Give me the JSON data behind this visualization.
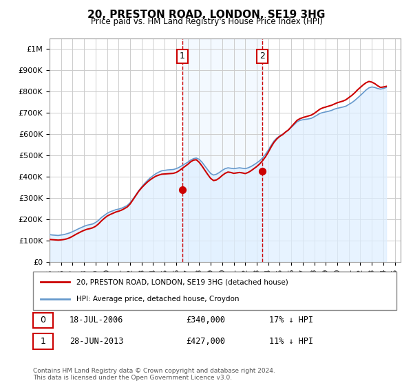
{
  "title": "20, PRESTON ROAD, LONDON, SE19 3HG",
  "subtitle": "Price paid vs. HM Land Registry's House Price Index (HPI)",
  "ylabel_ticks": [
    "£0",
    "£100K",
    "£200K",
    "£300K",
    "£400K",
    "£500K",
    "£600K",
    "£700K",
    "£800K",
    "£900K",
    "£1M"
  ],
  "ytick_values": [
    0,
    100000,
    200000,
    300000,
    400000,
    500000,
    600000,
    700000,
    800000,
    900000,
    1000000
  ],
  "ylim": [
    0,
    1050000
  ],
  "xlim_start": 1995.0,
  "xlim_end": 2025.5,
  "background_color": "#ffffff",
  "plot_bg_color": "#ffffff",
  "grid_color": "#cccccc",
  "hpi_color": "#6699cc",
  "sale_color": "#cc0000",
  "hpi_fill_color": "#ddeeff",
  "annotation_box_color": "#cc0000",
  "annotation_vline_color": "#cc0000",
  "annotation_fill_color": "#ddeeff",
  "transaction1": {
    "date_label": "18-JUL-2006",
    "year": 2006.54,
    "price": 340000,
    "label": "1",
    "pct": "17% ↓ HPI"
  },
  "transaction2": {
    "date_label": "28-JUN-2013",
    "year": 2013.49,
    "price": 427000,
    "label": "2",
    "pct": "11% ↓ HPI"
  },
  "legend_line1": "20, PRESTON ROAD, LONDON, SE19 3HG (detached house)",
  "legend_line2": "HPI: Average price, detached house, Croydon",
  "footnote": "Contains HM Land Registry data © Crown copyright and database right 2024.\nThis data is licensed under the Open Government Licence v3.0.",
  "hpi_data": {
    "years": [
      1995.0,
      1995.25,
      1995.5,
      1995.75,
      1996.0,
      1996.25,
      1996.5,
      1996.75,
      1997.0,
      1997.25,
      1997.5,
      1997.75,
      1998.0,
      1998.25,
      1998.5,
      1998.75,
      1999.0,
      1999.25,
      1999.5,
      1999.75,
      2000.0,
      2000.25,
      2000.5,
      2000.75,
      2001.0,
      2001.25,
      2001.5,
      2001.75,
      2002.0,
      2002.25,
      2002.5,
      2002.75,
      2003.0,
      2003.25,
      2003.5,
      2003.75,
      2004.0,
      2004.25,
      2004.5,
      2004.75,
      2005.0,
      2005.25,
      2005.5,
      2005.75,
      2006.0,
      2006.25,
      2006.5,
      2006.75,
      2007.0,
      2007.25,
      2007.5,
      2007.75,
      2008.0,
      2008.25,
      2008.5,
      2008.75,
      2009.0,
      2009.25,
      2009.5,
      2009.75,
      2010.0,
      2010.25,
      2010.5,
      2010.75,
      2011.0,
      2011.25,
      2011.5,
      2011.75,
      2012.0,
      2012.25,
      2012.5,
      2012.75,
      2013.0,
      2013.25,
      2013.5,
      2013.75,
      2014.0,
      2014.25,
      2014.5,
      2014.75,
      2015.0,
      2015.25,
      2015.5,
      2015.75,
      2016.0,
      2016.25,
      2016.5,
      2016.75,
      2017.0,
      2017.25,
      2017.5,
      2017.75,
      2018.0,
      2018.25,
      2018.5,
      2018.75,
      2019.0,
      2019.25,
      2019.5,
      2019.75,
      2020.0,
      2020.25,
      2020.5,
      2020.75,
      2021.0,
      2021.25,
      2021.5,
      2021.75,
      2022.0,
      2022.25,
      2022.5,
      2022.75,
      2023.0,
      2023.25,
      2023.5,
      2023.75,
      2024.0,
      2024.25
    ],
    "values": [
      128000,
      126000,
      125000,
      124000,
      126000,
      128000,
      132000,
      136000,
      142000,
      148000,
      155000,
      161000,
      167000,
      172000,
      175000,
      178000,
      185000,
      195000,
      208000,
      218000,
      228000,
      235000,
      240000,
      245000,
      248000,
      252000,
      258000,
      265000,
      278000,
      295000,
      315000,
      335000,
      352000,
      368000,
      382000,
      395000,
      405000,
      415000,
      422000,
      428000,
      430000,
      432000,
      433000,
      434000,
      438000,
      444000,
      452000,
      460000,
      468000,
      478000,
      485000,
      488000,
      482000,
      468000,
      450000,
      432000,
      415000,
      408000,
      412000,
      420000,
      430000,
      438000,
      442000,
      440000,
      438000,
      440000,
      442000,
      440000,
      438000,
      442000,
      448000,
      456000,
      465000,
      475000,
      488000,
      505000,
      525000,
      548000,
      568000,
      582000,
      592000,
      600000,
      610000,
      620000,
      632000,
      645000,
      658000,
      665000,
      668000,
      670000,
      672000,
      675000,
      682000,
      690000,
      698000,
      702000,
      705000,
      708000,
      712000,
      718000,
      722000,
      725000,
      728000,
      732000,
      740000,
      748000,
      758000,
      770000,
      782000,
      795000,
      808000,
      818000,
      822000,
      820000,
      815000,
      812000,
      815000,
      820000
    ]
  },
  "sale_data": {
    "years": [
      1995.0,
      1995.25,
      1995.5,
      1995.75,
      1996.0,
      1996.25,
      1996.5,
      1996.75,
      1997.0,
      1997.25,
      1997.5,
      1997.75,
      1998.0,
      1998.25,
      1998.5,
      1998.75,
      1999.0,
      1999.25,
      1999.5,
      1999.75,
      2000.0,
      2000.25,
      2000.5,
      2000.75,
      2001.0,
      2001.25,
      2001.5,
      2001.75,
      2002.0,
      2002.25,
      2002.5,
      2002.75,
      2003.0,
      2003.25,
      2003.5,
      2003.75,
      2004.0,
      2004.25,
      2004.5,
      2004.75,
      2005.0,
      2005.25,
      2005.5,
      2005.75,
      2006.0,
      2006.25,
      2006.5,
      2006.75,
      2007.0,
      2007.25,
      2007.5,
      2007.75,
      2008.0,
      2008.25,
      2008.5,
      2008.75,
      2009.0,
      2009.25,
      2009.5,
      2009.75,
      2010.0,
      2010.25,
      2010.5,
      2010.75,
      2011.0,
      2011.25,
      2011.5,
      2011.75,
      2012.0,
      2012.25,
      2012.5,
      2012.75,
      2013.0,
      2013.25,
      2013.5,
      2013.75,
      2014.0,
      2014.25,
      2014.5,
      2014.75,
      2015.0,
      2015.25,
      2015.5,
      2015.75,
      2016.0,
      2016.25,
      2016.5,
      2016.75,
      2017.0,
      2017.25,
      2017.5,
      2017.75,
      2018.0,
      2018.25,
      2018.5,
      2018.75,
      2019.0,
      2019.25,
      2019.5,
      2019.75,
      2020.0,
      2020.25,
      2020.5,
      2020.75,
      2021.0,
      2021.25,
      2021.5,
      2021.75,
      2022.0,
      2022.25,
      2022.5,
      2022.75,
      2023.0,
      2023.25,
      2023.5,
      2023.75,
      2024.0,
      2024.25
    ],
    "values": [
      105000,
      104000,
      103000,
      102000,
      103000,
      105000,
      108000,
      113000,
      120000,
      128000,
      135000,
      142000,
      148000,
      153000,
      156000,
      160000,
      167000,
      178000,
      192000,
      204000,
      215000,
      222000,
      228000,
      234000,
      238000,
      243000,
      250000,
      258000,
      272000,
      292000,
      312000,
      332000,
      348000,
      362000,
      375000,
      386000,
      395000,
      403000,
      408000,
      412000,
      413000,
      414000,
      415000,
      416000,
      420000,
      428000,
      438000,
      448000,
      458000,
      470000,
      478000,
      480000,
      468000,
      450000,
      430000,
      410000,
      392000,
      382000,
      385000,
      394000,
      406000,
      416000,
      422000,
      420000,
      416000,
      418000,
      420000,
      418000,
      415000,
      420000,
      428000,
      438000,
      448000,
      460000,
      475000,
      493000,
      515000,
      540000,
      562000,
      578000,
      590000,
      598000,
      610000,
      620000,
      635000,
      650000,
      665000,
      673000,
      678000,
      682000,
      686000,
      690000,
      698000,
      708000,
      718000,
      724000,
      728000,
      732000,
      736000,
      742000,
      748000,
      752000,
      756000,
      762000,
      772000,
      782000,
      794000,
      808000,
      820000,
      832000,
      842000,
      848000,
      845000,
      838000,
      828000,
      820000,
      822000,
      825000
    ]
  },
  "xtick_years": [
    1995,
    1996,
    1997,
    1998,
    1999,
    2000,
    2001,
    2002,
    2003,
    2004,
    2005,
    2006,
    2007,
    2008,
    2009,
    2010,
    2011,
    2012,
    2013,
    2014,
    2015,
    2016,
    2017,
    2018,
    2019,
    2020,
    2021,
    2022,
    2023,
    2024,
    2025
  ]
}
